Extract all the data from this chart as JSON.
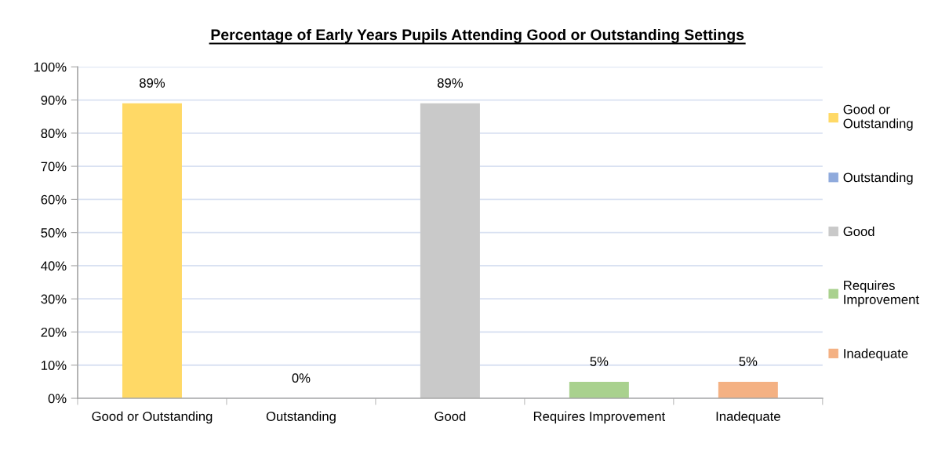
{
  "chart_data": {
    "type": "bar",
    "title": "Percentage of Early Years Pupils Attending Good or Outstanding Settings",
    "categories": [
      "Good or Outstanding",
      "Outstanding",
      "Good",
      "Requires Improvement",
      "Inadequate"
    ],
    "series": [
      {
        "name": "Good or Outstanding",
        "color": "#ffd966",
        "values": [
          89,
          null,
          null,
          null,
          null
        ],
        "value_labels": [
          "89%",
          null,
          null,
          null,
          null
        ]
      },
      {
        "name": "Outstanding",
        "color": "#8faadc",
        "values": [
          null,
          0,
          null,
          null,
          null
        ],
        "value_labels": [
          null,
          "0%",
          null,
          null,
          null
        ]
      },
      {
        "name": "Good",
        "color": "#c9c9c9",
        "values": [
          null,
          null,
          89,
          null,
          null
        ],
        "value_labels": [
          null,
          null,
          "89%",
          null,
          null
        ]
      },
      {
        "name": "Requires Improvement",
        "color": "#a9d18e",
        "values": [
          null,
          null,
          null,
          5,
          null
        ],
        "value_labels": [
          null,
          null,
          null,
          "5%",
          null
        ]
      },
      {
        "name": "Inadequate",
        "color": "#f4b183",
        "values": [
          null,
          null,
          null,
          null,
          5
        ],
        "value_labels": [
          null,
          null,
          null,
          null,
          "5%"
        ]
      }
    ],
    "ylim": [
      0,
      100
    ],
    "yticks": [
      {
        "value": 0,
        "label": "0%"
      },
      {
        "value": 10,
        "label": "10%"
      },
      {
        "value": 20,
        "label": "20%"
      },
      {
        "value": 30,
        "label": "30%"
      },
      {
        "value": 40,
        "label": "40%"
      },
      {
        "value": 50,
        "label": "50%"
      },
      {
        "value": 60,
        "label": "60%"
      },
      {
        "value": 70,
        "label": "70%"
      },
      {
        "value": 80,
        "label": "80%"
      },
      {
        "value": 90,
        "label": "90%"
      },
      {
        "value": 100,
        "label": "100%"
      }
    ],
    "grid": "y",
    "legend": "right"
  }
}
